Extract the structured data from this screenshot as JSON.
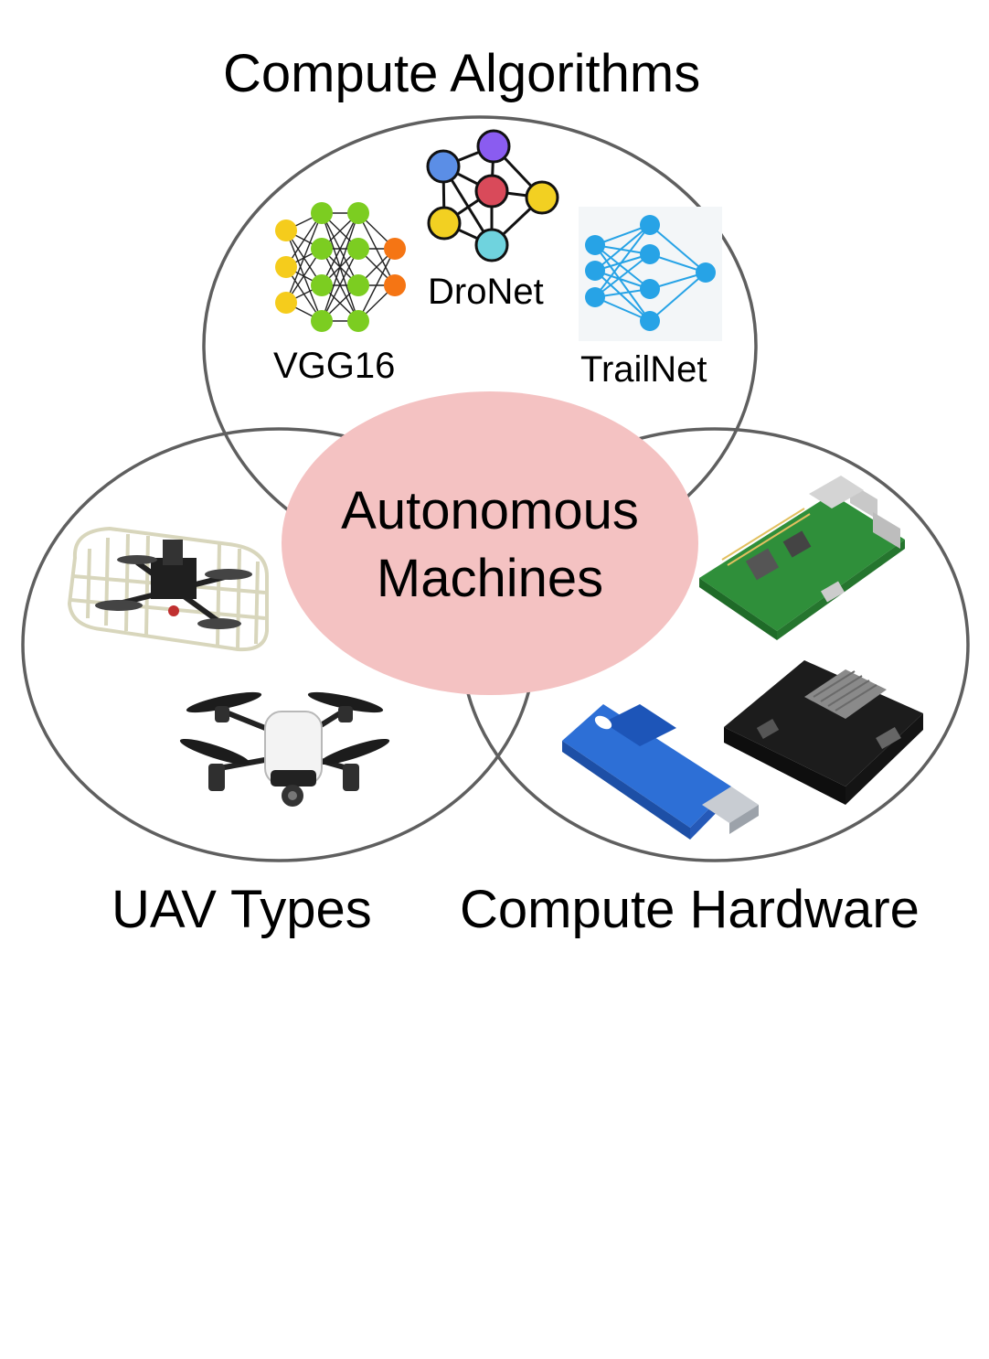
{
  "colors": {
    "circle_stroke": "#5f5f5f",
    "center_fill": "#f4c2c2",
    "vgg_input": "#f5cc1c",
    "vgg_hidden": "#7ccd21",
    "vgg_output": "#f57514",
    "dronet_blue": "#5b8ee6",
    "dronet_purple": "#8a5cf0",
    "dronet_red": "#d94a5a",
    "dronet_yellow": "#f2d022",
    "dronet_cyan": "#6fd3de",
    "trailnet_node": "#27a3e6"
  },
  "sections": {
    "algorithms": {
      "title": "Compute Algorithms",
      "networks": [
        {
          "label": "VGG16",
          "icon": "layered-neural-network-icon"
        },
        {
          "label": "DroNet",
          "icon": "graph-neural-network-icon"
        },
        {
          "label": "TrailNet",
          "icon": "feedforward-neural-network-icon"
        }
      ]
    },
    "uav": {
      "title": "UAV Types",
      "images": [
        "caged-quadcopter-drone",
        "white-quadcopter-drone"
      ]
    },
    "hardware": {
      "title": "Compute Hardware",
      "images": [
        "raspberry-pi-board",
        "neural-compute-stick",
        "jetson-dev-board"
      ]
    }
  },
  "center": {
    "line1": "Autonomous",
    "line2": "Machines"
  }
}
